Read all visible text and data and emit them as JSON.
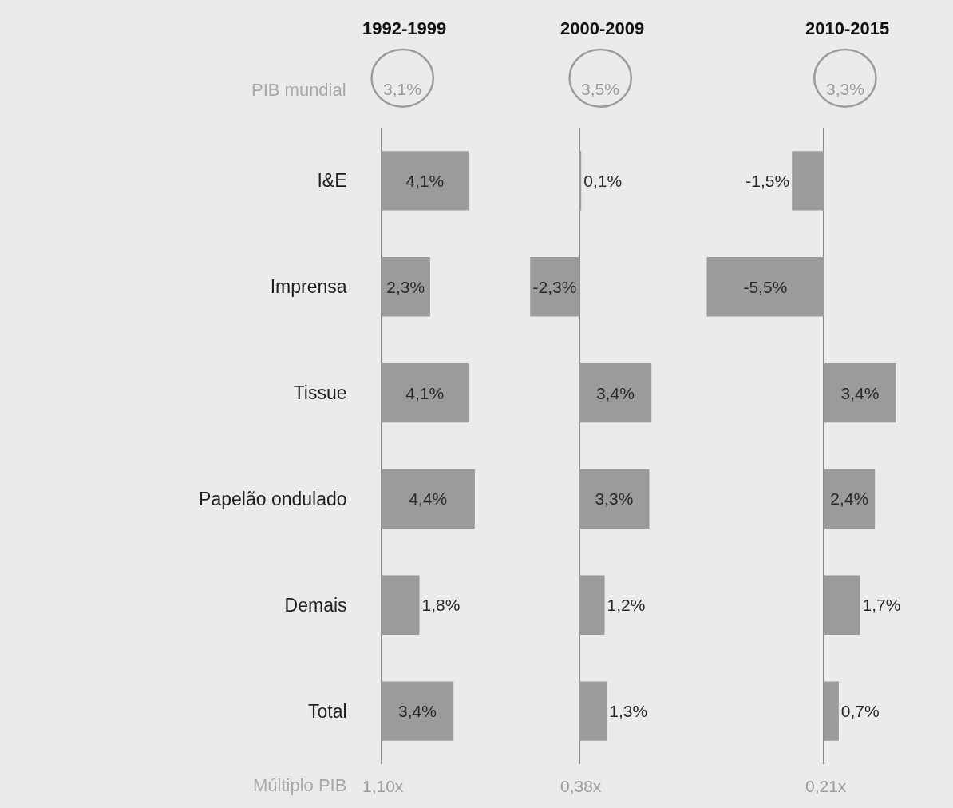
{
  "chart_data": [
    {
      "type": "bar",
      "orientation": "horizontal",
      "title": "1992-1999",
      "categories": [
        "I&E",
        "Imprensa",
        "Tissue",
        "Papelão ondulado",
        "Demais",
        "Total"
      ],
      "values": [
        4.1,
        2.3,
        4.1,
        4.4,
        1.8,
        3.4
      ],
      "value_labels": [
        "4,1%",
        "2,3%",
        "4,1%",
        "4,4%",
        "1,8%",
        "3,4%"
      ],
      "color": "#9b9b9b",
      "tick_labels": "y",
      "annotations": [
        "3,1%",
        "1,10x",
        "PIB mundial",
        "Múltiplo PIB"
      ]
    },
    {
      "type": "bar",
      "orientation": "horizontal",
      "title": "2000-2009",
      "categories": [
        null,
        null,
        null,
        null,
        null,
        null
      ],
      "values": [
        0.1,
        -2.3,
        3.4,
        3.3,
        1.2,
        1.3
      ],
      "value_labels": [
        "0,1%",
        "-2,3%",
        "3,4%",
        "3,3%",
        "1,2%",
        "1,3%"
      ],
      "color": "#9b9b9b",
      "tick_labels": false,
      "annotations": [
        "3,5%",
        "0,38x"
      ]
    },
    {
      "type": "bar",
      "orientation": "horizontal",
      "title": "2010-2015",
      "categories": [
        null,
        null,
        null,
        null,
        null,
        null
      ],
      "values": [
        -1.5,
        -5.5,
        3.4,
        2.4,
        1.7,
        0.7
      ],
      "value_labels": [
        "-1,5%",
        "-5,5%",
        "3,4%",
        "2,4%",
        "1,7%",
        "0,7%"
      ],
      "color": "#9b9b9b",
      "tick_labels": false,
      "annotations": [
        "3,3%",
        "0,21x"
      ]
    }
  ]
}
